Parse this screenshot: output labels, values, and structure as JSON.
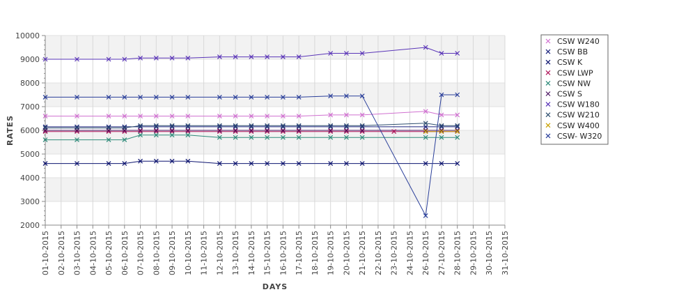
{
  "chart_data": {
    "type": "line",
    "xlabel": "DAYS",
    "ylabel": "RATES",
    "ylim": [
      2000,
      10000
    ],
    "yticks": [
      2000,
      3000,
      4000,
      5000,
      6000,
      7000,
      8000,
      9000,
      10000
    ],
    "categories": [
      "01-10-2015",
      "02-10-2015",
      "03-10-2015",
      "04-10-2015",
      "05-10-2015",
      "06-10-2015",
      "07-10-2015",
      "08-10-2015",
      "09-10-2015",
      "10-10-2015",
      "11-10-2015",
      "12-10-2015",
      "13-10-2015",
      "14-10-2015",
      "15-10-2015",
      "16-10-2015",
      "17-10-2015",
      "18-10-2015",
      "19-10-2015",
      "20-10-2015",
      "21-10-2015",
      "22-10-2015",
      "23-10-2015",
      "24-10-2015",
      "26-10-2015",
      "27-10-2015",
      "28-10-2015",
      "29-10-2015",
      "30-10-2015",
      "31-10-2015"
    ],
    "grid": "horizontal alternating bands",
    "legend": "right",
    "series": [
      {
        "name": "CSW  W240",
        "color": "#d070d0",
        "values": [
          6600,
          null,
          6600,
          null,
          6600,
          6600,
          6600,
          6600,
          6600,
          6600,
          null,
          6600,
          6600,
          6600,
          6600,
          6600,
          6600,
          null,
          6650,
          6650,
          6650,
          null,
          null,
          null,
          6800,
          6650,
          6650,
          null,
          null,
          null
        ]
      },
      {
        "name": "CSW BB",
        "color": "#1a237e",
        "values": [
          6150,
          null,
          6150,
          null,
          6150,
          6150,
          6150,
          6150,
          6150,
          6150,
          null,
          6150,
          6150,
          6150,
          6150,
          6150,
          6150,
          null,
          6150,
          6150,
          6150,
          null,
          null,
          null,
          6150,
          6150,
          6150,
          null,
          null,
          null
        ]
      },
      {
        "name": "CSW K",
        "color": "#0d1470",
        "values": [
          4600,
          null,
          4600,
          null,
          4600,
          4600,
          4700,
          4700,
          4700,
          4700,
          null,
          4600,
          4600,
          4600,
          4600,
          4600,
          4600,
          null,
          4600,
          4600,
          4600,
          null,
          null,
          null,
          4600,
          4600,
          4600,
          null,
          null,
          null
        ]
      },
      {
        "name": "CSW LWP",
        "color": "#b0155a",
        "values": [
          5950,
          null,
          5950,
          null,
          5950,
          5950,
          5950,
          5950,
          5950,
          5950,
          null,
          5950,
          5950,
          5950,
          5950,
          5950,
          5950,
          null,
          5950,
          5950,
          5950,
          null,
          5950,
          null,
          5950,
          5950,
          5950,
          null,
          null,
          null
        ]
      },
      {
        "name": "CSW NW",
        "color": "#2e8b7a",
        "values": [
          5600,
          null,
          5600,
          null,
          5600,
          5600,
          5800,
          5800,
          5800,
          5800,
          null,
          5700,
          5700,
          5700,
          5700,
          5700,
          5700,
          null,
          5700,
          5700,
          5700,
          null,
          null,
          null,
          5700,
          5700,
          5700,
          null,
          null,
          null
        ]
      },
      {
        "name": "CSW S",
        "color": "#4a1460",
        "values": [
          6000,
          null,
          6000,
          null,
          6000,
          6000,
          6000,
          6000,
          6000,
          6000,
          null,
          6000,
          6000,
          6000,
          6000,
          6000,
          6000,
          null,
          6000,
          6000,
          6000,
          null,
          null,
          null,
          6000,
          6000,
          6000,
          null,
          null,
          null
        ]
      },
      {
        "name": "CSW W180",
        "color": "#5a35b8",
        "values": [
          9000,
          null,
          9000,
          null,
          9000,
          9000,
          9050,
          9050,
          9050,
          9050,
          null,
          9100,
          9100,
          9100,
          9100,
          9100,
          9100,
          null,
          9250,
          9250,
          9250,
          null,
          null,
          null,
          9500,
          9250,
          9250,
          null,
          null,
          null
        ]
      },
      {
        "name": "CSW W210",
        "color": "#2f4f6f",
        "values": [
          6100,
          null,
          6100,
          null,
          6100,
          6100,
          6200,
          6200,
          6200,
          6200,
          null,
          6200,
          6200,
          6200,
          6200,
          6200,
          6200,
          null,
          6200,
          6200,
          6200,
          null,
          null,
          null,
          6300,
          6200,
          6200,
          null,
          null,
          null
        ]
      },
      {
        "name": "CSW W400",
        "color": "#c8a000",
        "values": [
          null,
          null,
          null,
          null,
          null,
          null,
          null,
          null,
          null,
          null,
          null,
          null,
          null,
          null,
          null,
          null,
          null,
          null,
          null,
          null,
          null,
          null,
          null,
          null,
          5950,
          5950,
          5950,
          null,
          null,
          null
        ]
      },
      {
        "name": "CSW- W320",
        "color": "#2a3f9a",
        "values": [
          7400,
          null,
          7400,
          null,
          7400,
          7400,
          7400,
          7400,
          7400,
          7400,
          null,
          7400,
          7400,
          7400,
          7400,
          7400,
          7400,
          null,
          7450,
          7450,
          7450,
          null,
          null,
          null,
          2400,
          7500,
          7500,
          null,
          null,
          null
        ]
      }
    ]
  }
}
